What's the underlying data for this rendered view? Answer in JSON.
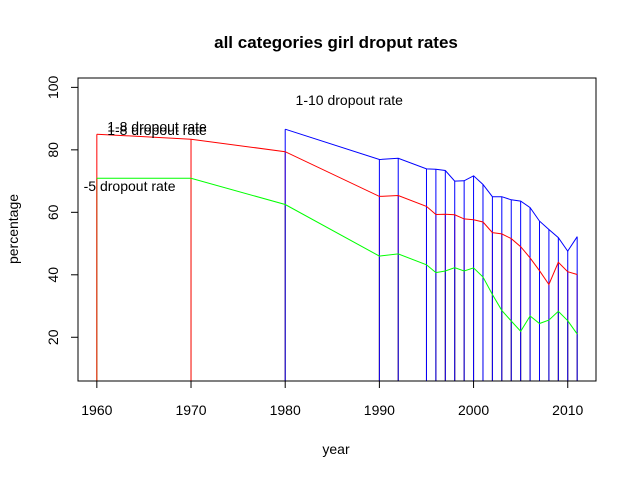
{
  "chart_data": {
    "type": "line",
    "title": "all categories girl droput rates",
    "xlabel": "year",
    "ylabel": "percentage",
    "xlim": [
      1958,
      2013
    ],
    "ylim": [
      6,
      103
    ],
    "x_ticks": [
      1960,
      1970,
      1980,
      1990,
      2000,
      2010
    ],
    "y_ticks": [
      20,
      40,
      60,
      80,
      100
    ],
    "grid": false,
    "legend": "none",
    "x": [
      1960,
      1970,
      1980,
      1990,
      1992,
      1995,
      1996,
      1997,
      1998,
      1999,
      2000,
      2001,
      2002,
      2003,
      2004,
      2005,
      2006,
      2007,
      2008,
      2009,
      2010,
      2011
    ],
    "series": [
      {
        "color": "#0000ff",
        "values": [
          null,
          null,
          86.6,
          76.9,
          77.3,
          73.9,
          73.8,
          73.4,
          70.0,
          70.1,
          71.7,
          68.9,
          65.0,
          65.0,
          64.0,
          63.6,
          61.5,
          57.2,
          54.5,
          51.9,
          47.6,
          52.2
        ]
      },
      {
        "color": "#ff0000",
        "values": [
          85.0,
          83.4,
          79.4,
          65.1,
          65.4,
          61.9,
          59.3,
          59.4,
          59.2,
          57.9,
          57.6,
          56.9,
          53.5,
          53.1,
          51.6,
          49.0,
          45.4,
          41.3,
          36.9,
          44.0,
          41.0,
          40.1
        ]
      },
      {
        "color": "#00ff00",
        "values": [
          70.9,
          70.9,
          62.5,
          46.0,
          46.7,
          43.2,
          40.7,
          41.2,
          42.3,
          41.2,
          42.2,
          39.3,
          33.7,
          28.6,
          25.2,
          21.9,
          26.8,
          24.4,
          25.5,
          28.3,
          25.3,
          21.0
        ]
      }
    ],
    "annotations": [
      {
        "text": "1-10 dropout rate",
        "x": 1981.1,
        "y": 94.4
      },
      {
        "text": "1-8 dropout rate",
        "x": 1961.1,
        "y": 85.8
      },
      {
        "text": "1-8 dropout rate",
        "x": 1961.1,
        "y": 84.7
      },
      {
        "text": "-5 dropout rate",
        "x": 1958.6,
        "y": 66.9
      }
    ]
  }
}
